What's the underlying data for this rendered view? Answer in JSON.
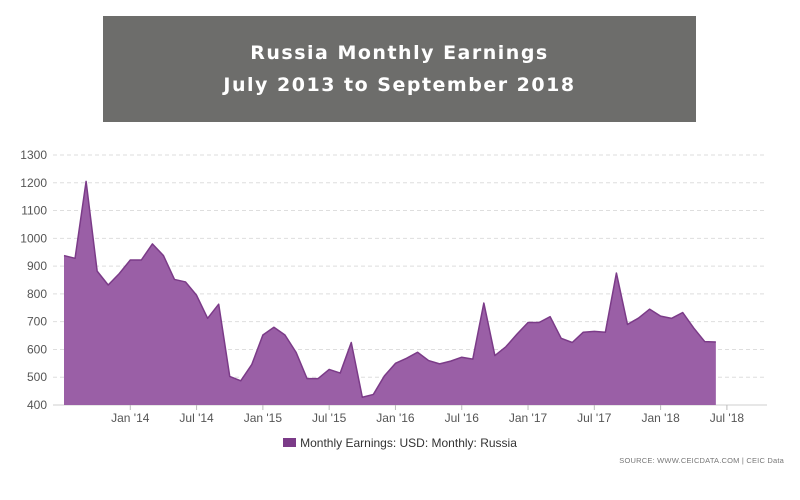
{
  "title": {
    "line1": "Russia Monthly Earnings",
    "line2": "July 2013 to September 2018",
    "box_color": "#6d6d6b"
  },
  "chart_data": {
    "type": "area",
    "title": "Russia Monthly Earnings July 2013 to September 2018",
    "xlabel": "",
    "ylabel": "",
    "ylim": [
      400,
      1300
    ],
    "yticks": [
      400,
      500,
      600,
      700,
      800,
      900,
      1000,
      1100,
      1200,
      1300
    ],
    "x_start": "2013-07",
    "x_end": "2018-09",
    "xtick_labels": [
      {
        "date": "2014-01",
        "label": "Jan '14"
      },
      {
        "date": "2014-07",
        "label": "Jul '14"
      },
      {
        "date": "2015-01",
        "label": "Jan '15"
      },
      {
        "date": "2015-07",
        "label": "Jul '15"
      },
      {
        "date": "2016-01",
        "label": "Jan '16"
      },
      {
        "date": "2016-07",
        "label": "Jul '16"
      },
      {
        "date": "2017-01",
        "label": "Jan '17"
      },
      {
        "date": "2017-07",
        "label": "Jul '17"
      },
      {
        "date": "2018-01",
        "label": "Jan '18"
      },
      {
        "date": "2018-07",
        "label": "Jul '18"
      }
    ],
    "grid": true,
    "legend_position": "bottom",
    "series": [
      {
        "name": "Monthly Earnings: USD: Monthly: Russia",
        "color": "#8b4a98",
        "points": [
          [
            "2013-07",
            938
          ],
          [
            "2013-08",
            928
          ],
          [
            "2013-09",
            1205
          ],
          [
            "2013-10",
            882
          ],
          [
            "2013-11",
            832
          ],
          [
            "2013-12",
            873
          ],
          [
            "2014-01",
            922
          ],
          [
            "2014-02",
            922
          ],
          [
            "2014-03",
            980
          ],
          [
            "2014-04",
            938
          ],
          [
            "2014-05",
            852
          ],
          [
            "2014-06",
            843
          ],
          [
            "2014-07",
            795
          ],
          [
            "2014-08",
            712
          ],
          [
            "2014-09",
            763
          ],
          [
            "2014-10",
            503
          ],
          [
            "2014-11",
            487
          ],
          [
            "2014-12",
            546
          ],
          [
            "2015-01",
            652
          ],
          [
            "2015-02",
            680
          ],
          [
            "2015-03",
            652
          ],
          [
            "2015-04",
            590
          ],
          [
            "2015-05",
            495
          ],
          [
            "2015-06",
            495
          ],
          [
            "2015-07",
            528
          ],
          [
            "2015-08",
            515
          ],
          [
            "2015-09",
            625
          ],
          [
            "2015-10",
            428
          ],
          [
            "2015-11",
            438
          ],
          [
            "2015-12",
            505
          ],
          [
            "2016-01",
            550
          ],
          [
            "2016-02",
            568
          ],
          [
            "2016-03",
            590
          ],
          [
            "2016-04",
            560
          ],
          [
            "2016-05",
            548
          ],
          [
            "2016-06",
            558
          ],
          [
            "2016-07",
            572
          ],
          [
            "2016-08",
            565
          ],
          [
            "2016-09",
            767
          ],
          [
            "2016-10",
            578
          ],
          [
            "2016-11",
            610
          ],
          [
            "2016-12",
            655
          ],
          [
            "2017-01",
            697
          ],
          [
            "2017-02",
            697
          ],
          [
            "2017-03",
            718
          ],
          [
            "2017-04",
            640
          ],
          [
            "2017-05",
            625
          ],
          [
            "2017-06",
            662
          ],
          [
            "2017-07",
            665
          ],
          [
            "2017-08",
            662
          ],
          [
            "2017-09",
            875
          ],
          [
            "2017-10",
            690
          ],
          [
            "2017-11",
            713
          ],
          [
            "2017-12",
            745
          ],
          [
            "2018-01",
            720
          ],
          [
            "2018-02",
            712
          ],
          [
            "2018-03",
            733
          ],
          [
            "2018-04",
            677
          ],
          [
            "2018-05",
            628
          ],
          [
            "2018-06",
            627
          ]
        ]
      }
    ]
  },
  "legend": {
    "label": "Monthly Earnings: USD: Monthly: Russia",
    "color": "#7b3b88"
  },
  "source": "SOURCE: WWW.CEICDATA.COM | CEIC Data"
}
